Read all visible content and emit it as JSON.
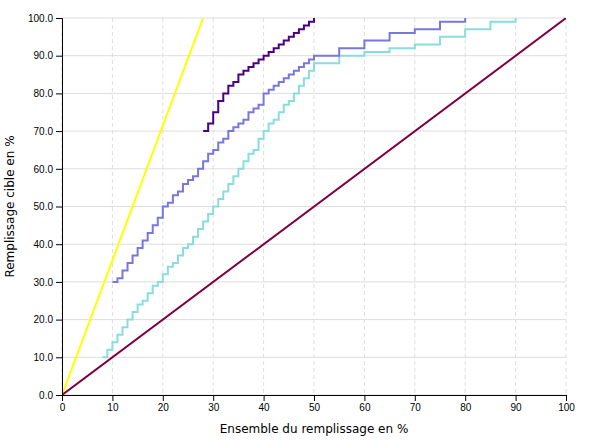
{
  "chart_data": {
    "type": "line",
    "xlabel": "Ensemble du remplissage en %",
    "ylabel": "Remplissage cible en %",
    "xlim": [
      0,
      100
    ],
    "ylim": [
      0,
      100
    ],
    "xticks": [
      0,
      10,
      20,
      30,
      40,
      50,
      60,
      70,
      80,
      90,
      100
    ],
    "yticks": [
      {
        "value": 0.0,
        "label": "0.0"
      },
      {
        "value": 10.0,
        "label": "10.0"
      },
      {
        "value": 20.0,
        "label": "20.0"
      },
      {
        "value": 30.0,
        "label": "30.0"
      },
      {
        "value": 40.0,
        "label": "40.0"
      },
      {
        "value": 50.0,
        "label": "50.0"
      },
      {
        "value": 60.0,
        "label": "60.0"
      },
      {
        "value": 70.0,
        "label": "70.0"
      },
      {
        "value": 80.0,
        "label": "80.0"
      },
      {
        "value": 90.0,
        "label": "90.0"
      },
      {
        "value": 100.0,
        "label": "100.0"
      }
    ],
    "grid": true,
    "series": [
      {
        "type": "line",
        "color": "#800040",
        "x": [
          0,
          100
        ],
        "values": [
          0,
          100
        ]
      },
      {
        "type": "line",
        "color": "#ffff00",
        "x": [
          0,
          28
        ],
        "values": [
          0,
          100
        ]
      },
      {
        "type": "step",
        "color": "#4b0082",
        "x": [
          28,
          29,
          30,
          31,
          32,
          33,
          34,
          35,
          36,
          37,
          38,
          39,
          40,
          41,
          42,
          43,
          44,
          45,
          46,
          47,
          48,
          49,
          50
        ],
        "values": [
          70,
          72,
          75,
          78,
          80,
          82,
          83,
          85,
          86,
          87,
          88,
          89,
          90,
          91,
          92,
          93,
          94,
          95,
          96,
          97,
          98,
          99,
          100
        ]
      },
      {
        "type": "step",
        "color": "#7777dd",
        "x": [
          10,
          11,
          12,
          13,
          14,
          15,
          16,
          17,
          18,
          19,
          20,
          21,
          22,
          23,
          24,
          25,
          26,
          27,
          28,
          29,
          30,
          31,
          32,
          33,
          34,
          35,
          36,
          37,
          38,
          39,
          40,
          41,
          42,
          43,
          44,
          45,
          46,
          47,
          48,
          49,
          50,
          55,
          60,
          65,
          70,
          75,
          80
        ],
        "values": [
          30,
          31,
          33,
          35,
          37,
          39,
          41,
          43,
          45,
          47,
          50,
          51,
          53,
          54,
          56,
          57,
          58,
          60,
          62,
          64,
          65,
          67,
          68,
          70,
          71,
          72,
          73,
          75,
          76,
          77,
          80,
          81,
          82,
          83,
          84,
          85,
          86,
          87,
          88,
          89,
          90,
          92,
          94,
          96,
          97,
          99,
          100
        ]
      },
      {
        "type": "step",
        "color": "#88dddd",
        "x": [
          8,
          9,
          10,
          11,
          12,
          13,
          14,
          15,
          16,
          17,
          18,
          19,
          20,
          21,
          22,
          23,
          24,
          25,
          26,
          27,
          28,
          29,
          30,
          31,
          32,
          33,
          34,
          35,
          36,
          37,
          38,
          39,
          40,
          41,
          42,
          43,
          44,
          45,
          46,
          47,
          48,
          49,
          50,
          55,
          60,
          65,
          70,
          75,
          80,
          85,
          90
        ],
        "values": [
          10,
          12,
          14,
          16,
          18,
          20,
          22,
          24,
          25,
          27,
          29,
          30,
          32,
          34,
          35,
          37,
          39,
          40,
          42,
          44,
          46,
          48,
          50,
          52,
          54,
          56,
          58,
          60,
          62,
          64,
          65,
          68,
          70,
          72,
          73,
          75,
          77,
          78,
          80,
          82,
          84,
          86,
          88,
          90,
          91,
          92,
          93,
          95,
          97,
          99,
          100
        ]
      }
    ]
  }
}
